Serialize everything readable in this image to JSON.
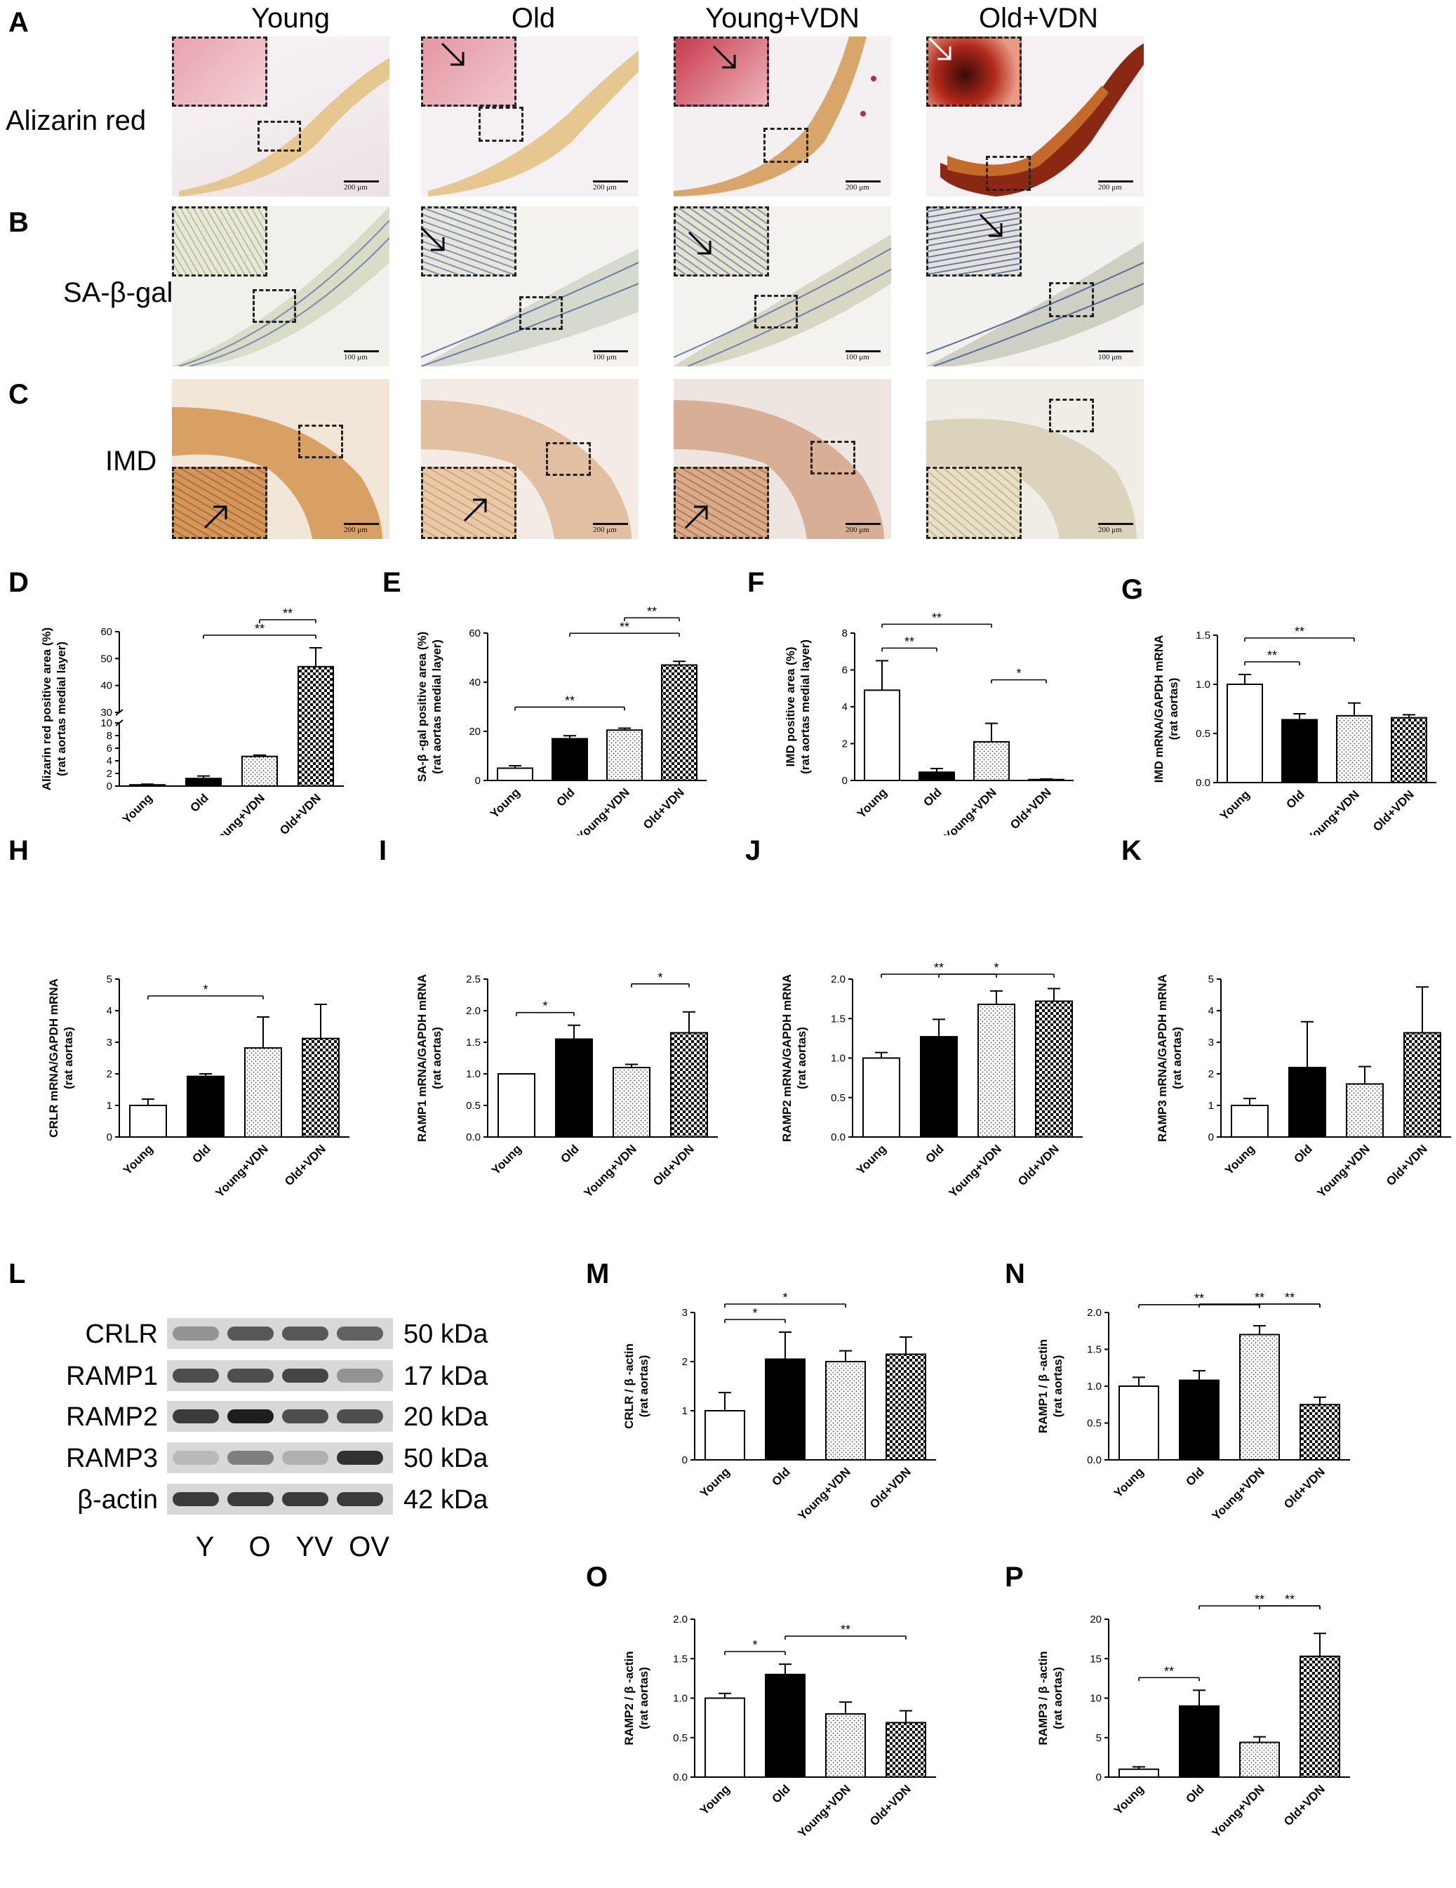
{
  "panel_letters": [
    "A",
    "B",
    "C",
    "D",
    "E",
    "F",
    "G",
    "H",
    "I",
    "J",
    "K",
    "L",
    "M",
    "N",
    "O",
    "P"
  ],
  "column_headers": [
    "Young",
    "Old",
    "Young+VDN",
    "Old+VDN"
  ],
  "row_labels": [
    "Alizarin red",
    "SA-β-gal",
    "IMD"
  ],
  "scale_bars": {
    "A": "200 μm",
    "B": "100 μm",
    "C": "200 μm"
  },
  "colors": {
    "young": "#ffffff",
    "old": "#000000",
    "young_vdn": "dotted",
    "old_vdn": "checker"
  },
  "blot": {
    "rows": [
      {
        "name": "CRLR",
        "kda": "50 kDa",
        "intensity": [
          0.35,
          0.65,
          0.65,
          0.6
        ]
      },
      {
        "name": "RAMP1",
        "kda": "17 kDa",
        "intensity": [
          0.7,
          0.7,
          0.75,
          0.35
        ]
      },
      {
        "name": "RAMP2",
        "kda": "20 kDa",
        "intensity": [
          0.8,
          0.95,
          0.7,
          0.7
        ]
      },
      {
        "name": "RAMP3",
        "kda": "50 kDa",
        "intensity": [
          0.15,
          0.45,
          0.2,
          0.85
        ]
      },
      {
        "name": "β-actin",
        "kda": "42 kDa",
        "intensity": [
          0.8,
          0.8,
          0.8,
          0.8
        ]
      }
    ],
    "lanes": [
      "Y",
      "O",
      "YV",
      "OV"
    ]
  },
  "chart_data": [
    {
      "panel": "D",
      "type": "bar",
      "categories": [
        "Young",
        "Old",
        "Young+VDN",
        "Old+VDN"
      ],
      "values": [
        0.2,
        1.2,
        4.7,
        47
      ],
      "errors": [
        0.1,
        0.4,
        0.2,
        7
      ],
      "ylabel": "Alizarin red positive area (%)\n(rat aortas medial layer)",
      "broken_axis": true,
      "ticks_lower": [
        0,
        2,
        4,
        6,
        8,
        10
      ],
      "ticks_upper": [
        30,
        40,
        50,
        60
      ],
      "sig": [
        {
          "from": 1,
          "to": 3,
          "label": "**"
        },
        {
          "from": 2,
          "to": 3,
          "label": "**"
        }
      ]
    },
    {
      "panel": "E",
      "type": "bar",
      "categories": [
        "Young",
        "Old",
        "Young+VDN",
        "Old+VDN"
      ],
      "values": [
        5,
        17,
        20.5,
        47
      ],
      "errors": [
        1,
        1.2,
        0.8,
        1.5
      ],
      "ylabel": "SA-β -gal positive area (%)\n(rat aortas medial  layer)",
      "ylim": [
        0,
        60
      ],
      "ticks": [
        0,
        20,
        40,
        60
      ],
      "sig": [
        {
          "from": 0,
          "to": 2,
          "label": "**"
        },
        {
          "from": 1,
          "to": 3,
          "label": "**"
        },
        {
          "from": 2,
          "to": 3,
          "label": "**"
        }
      ]
    },
    {
      "panel": "F",
      "type": "bar",
      "categories": [
        "Young",
        "Old",
        "Young+VDN",
        "Old+VDN"
      ],
      "values": [
        4.9,
        0.45,
        2.1,
        0.05
      ],
      "errors": [
        1.6,
        0.2,
        1.0,
        0.03
      ],
      "ylabel": "IMD positive area (%)\n(rat aortas medial layer)",
      "ylim": [
        0,
        8
      ],
      "ticks": [
        0,
        2,
        4,
        6,
        8
      ],
      "sig": [
        {
          "from": 0,
          "to": 1,
          "label": "**"
        },
        {
          "from": 0,
          "to": 2,
          "label": "**"
        },
        {
          "from": 2,
          "to": 3,
          "label": "*"
        }
      ]
    },
    {
      "panel": "G",
      "type": "bar",
      "categories": [
        "Young",
        "Old",
        "Young+VDN",
        "Old+VDN"
      ],
      "values": [
        1.0,
        0.64,
        0.68,
        0.66
      ],
      "errors": [
        0.1,
        0.06,
        0.13,
        0.03
      ],
      "ylabel": "IMD mRNA/GAPDH mRNA\n(rat aortas)",
      "ylim": [
        0,
        1.5
      ],
      "ticks": [
        0.0,
        0.5,
        1.0,
        1.5
      ],
      "sig": [
        {
          "from": 0,
          "to": 1,
          "label": "**"
        },
        {
          "from": 0,
          "to": 2,
          "label": "**"
        }
      ]
    },
    {
      "panel": "H",
      "type": "bar",
      "categories": [
        "Young",
        "Old",
        "Young+VDN",
        "Old+VDN"
      ],
      "values": [
        1.0,
        1.92,
        2.82,
        3.12
      ],
      "errors": [
        0.2,
        0.08,
        0.98,
        1.08
      ],
      "ylabel": "CRLR mRNA/GAPDH mRNA\n(rat aortas)",
      "ylim": [
        0,
        5
      ],
      "ticks": [
        0,
        1,
        2,
        3,
        4,
        5
      ],
      "sig": [
        {
          "from": 0,
          "to": 2,
          "label": "*"
        }
      ]
    },
    {
      "panel": "I",
      "type": "bar",
      "categories": [
        "Young",
        "Old",
        "Young+VDN",
        "Old+VDN"
      ],
      "values": [
        1.0,
        1.55,
        1.1,
        1.65
      ],
      "errors": [
        0.0,
        0.22,
        0.05,
        0.33
      ],
      "ylabel": "RAMP1 mRNA/GAPDH mRNA\n(rat aortas)",
      "ylim": [
        0,
        2.5
      ],
      "ticks": [
        0.0,
        0.5,
        1.0,
        1.5,
        2.0,
        2.5
      ],
      "sig": [
        {
          "from": 0,
          "to": 1,
          "label": "*"
        },
        {
          "from": 2,
          "to": 3,
          "label": "*"
        }
      ]
    },
    {
      "panel": "J",
      "type": "bar",
      "categories": [
        "Young",
        "Old",
        "Young+VDN",
        "Old+VDN"
      ],
      "values": [
        1.0,
        1.27,
        1.68,
        1.72
      ],
      "errors": [
        0.07,
        0.22,
        0.17,
        0.16
      ],
      "ylabel": "RAMP2 mRNA/GAPDH mRNA\n(rat aortas)",
      "ylim": [
        0,
        2.0
      ],
      "ticks": [
        0.0,
        0.5,
        1.0,
        1.5,
        2.0
      ],
      "sig": [
        {
          "from": 0,
          "to": 2,
          "label": "**"
        },
        {
          "from": 1,
          "to": 3,
          "label": "*"
        }
      ]
    },
    {
      "panel": "K",
      "type": "bar",
      "categories": [
        "Young",
        "Old",
        "Young+VDN",
        "Old+VDN"
      ],
      "values": [
        1.0,
        2.2,
        1.68,
        3.3
      ],
      "errors": [
        0.22,
        1.45,
        0.55,
        1.45
      ],
      "ylabel": "RAMP3 mRNA/GAPDH mRNA\n(rat aortas)",
      "ylim": [
        0,
        5
      ],
      "ticks": [
        0,
        1,
        2,
        3,
        4,
        5
      ],
      "sig": []
    },
    {
      "panel": "M",
      "type": "bar",
      "categories": [
        "Young",
        "Old",
        "Young+VDN",
        "Old+VDN"
      ],
      "values": [
        1.0,
        2.05,
        2.0,
        2.15
      ],
      "errors": [
        0.37,
        0.55,
        0.22,
        0.35
      ],
      "ylabel": "CRLR / β -actin\n(rat aortas)",
      "ylim": [
        0,
        3
      ],
      "ticks": [
        0,
        1,
        2,
        3
      ],
      "sig": [
        {
          "from": 0,
          "to": 1,
          "label": "*"
        },
        {
          "from": 0,
          "to": 2,
          "label": "*"
        }
      ]
    },
    {
      "panel": "N",
      "type": "bar",
      "categories": [
        "Young",
        "Old",
        "Young+VDN",
        "Old+VDN"
      ],
      "values": [
        1.0,
        1.08,
        1.7,
        0.75
      ],
      "errors": [
        0.12,
        0.13,
        0.12,
        0.1
      ],
      "ylabel": "RAMP1 / β -actin\n(rat aortas)",
      "ylim": [
        0,
        2.0
      ],
      "ticks": [
        0.0,
        0.5,
        1.0,
        1.5,
        2.0
      ],
      "sig": [
        {
          "from": 0,
          "to": 2,
          "label": "**"
        },
        {
          "from": 1,
          "to": 3,
          "label": "**"
        },
        {
          "from": 2,
          "to": 3,
          "label": "**"
        }
      ]
    },
    {
      "panel": "O",
      "type": "bar",
      "categories": [
        "Young",
        "Old",
        "Young+VDN",
        "Old+VDN"
      ],
      "values": [
        1.0,
        1.3,
        0.8,
        0.69
      ],
      "errors": [
        0.06,
        0.13,
        0.15,
        0.15
      ],
      "ylabel": "RAMP2 / β -actin\n(rat aortas)",
      "ylim": [
        0,
        2.0
      ],
      "ticks": [
        0.0,
        0.5,
        1.0,
        1.5,
        2.0
      ],
      "sig": [
        {
          "from": 0,
          "to": 1,
          "label": "*"
        },
        {
          "from": 1,
          "to": 3,
          "label": "**"
        }
      ]
    },
    {
      "panel": "P",
      "type": "bar",
      "categories": [
        "Young",
        "Old",
        "Young+VDN",
        "Old+VDN"
      ],
      "values": [
        1.0,
        9.0,
        4.4,
        15.3
      ],
      "errors": [
        0.3,
        2.0,
        0.7,
        2.9
      ],
      "ylabel": "RAMP3 / β -actin\n(rat aortas)",
      "ylim": [
        0,
        20
      ],
      "ticks": [
        0,
        5,
        10,
        15,
        20
      ],
      "sig": [
        {
          "from": 0,
          "to": 1,
          "label": "**"
        },
        {
          "from": 1,
          "to": 3,
          "label": "**"
        },
        {
          "from": 2,
          "to": 3,
          "label": "**"
        }
      ]
    }
  ]
}
